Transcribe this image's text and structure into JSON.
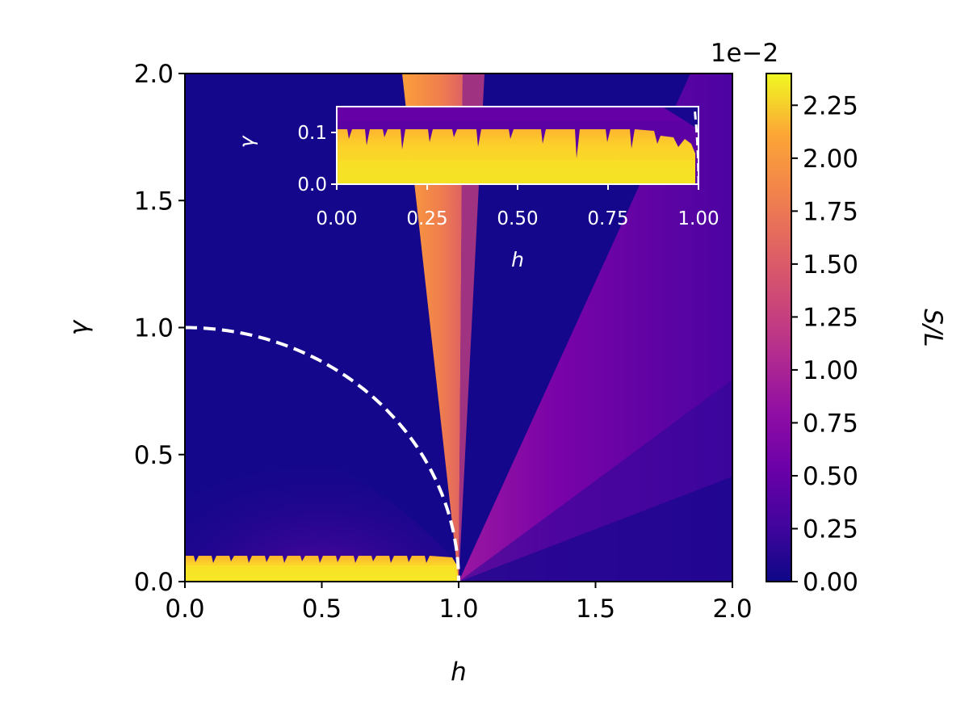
{
  "chart_data": [
    {
      "type": "heatmap",
      "role": "main",
      "title": "",
      "xlabel": "h",
      "ylabel": "γ",
      "xlim": [
        0.0,
        2.0
      ],
      "ylim": [
        0.0,
        2.0
      ],
      "xticks": [
        0.0,
        0.5,
        1.0,
        1.5,
        2.0
      ],
      "yticks": [
        0.0,
        0.5,
        1.0,
        1.5,
        2.0
      ],
      "xtick_labels": [
        "0.0",
        "0.5",
        "1.0",
        "1.5",
        "2.0"
      ],
      "ytick_labels": [
        "0.0",
        "0.5",
        "1.0",
        "1.5",
        "2.0"
      ],
      "colormap": "plasma",
      "colorbar": {
        "label": "S/L",
        "multiplier_text": "1e−2",
        "range": [
          0.0,
          2.4
        ],
        "ticks": [
          0.0,
          0.25,
          0.5,
          0.75,
          1.0,
          1.25,
          1.5,
          1.75,
          2.0,
          2.25
        ],
        "tick_labels": [
          "0.00",
          "0.25",
          "0.50",
          "0.75",
          "1.00",
          "1.25",
          "1.50",
          "1.75",
          "2.00",
          "2.25"
        ]
      },
      "features": {
        "critical_fan": {
          "description": "high-entropy wedge emanating from h=1, γ=0",
          "apex": [
            1.0,
            0.0
          ],
          "top_edges": [
            0.79,
            0.95
          ],
          "value_range": [
            1.6,
            2.0
          ]
        },
        "low_gamma_strip": {
          "h_range": [
            0.0,
            1.0
          ],
          "gamma_range": [
            0.0,
            0.1
          ],
          "value": 2.3
        },
        "background": {
          "value": 0.05
        },
        "right_region": {
          "value_range": [
            0.2,
            1.0
          ]
        }
      },
      "annotations": [
        {
          "type": "curve",
          "equation": "h^2 + γ^2 = 1",
          "style": "white dashed"
        }
      ]
    },
    {
      "type": "heatmap",
      "role": "inset",
      "xlabel": "h",
      "ylabel": "γ",
      "xlim": [
        0.0,
        1.0
      ],
      "ylim": [
        0.0,
        0.15
      ],
      "xticks": [
        0.0,
        0.25,
        0.5,
        0.75,
        1.0
      ],
      "yticks": [
        0.0,
        0.1
      ],
      "xtick_labels": [
        "0.00",
        "0.25",
        "0.50",
        "0.75",
        "1.00"
      ],
      "ytick_labels": [
        "0.0",
        "0.1"
      ],
      "features": {
        "strip": {
          "gamma_range": [
            0.0,
            0.1
          ],
          "value": 2.25
        },
        "above_strip": {
          "value": 0.5
        }
      },
      "annotations": [
        {
          "type": "curve",
          "equation": "h^2 + γ^2 = 1",
          "style": "white dashed"
        }
      ]
    }
  ]
}
